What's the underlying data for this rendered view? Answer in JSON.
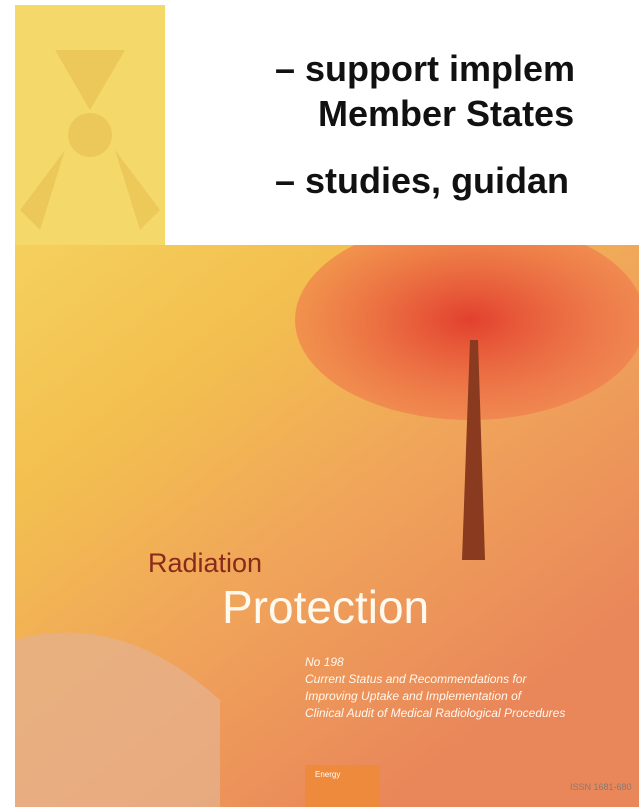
{
  "bullets": [
    "– support implem",
    "Member States",
    "– studies, guidan"
  ],
  "cover": {
    "series": "Radiation",
    "title": "Protection",
    "number": "No 198",
    "subtitle": [
      "Current Status and Recommendations for",
      "Improving Uptake and Implementation of",
      "Clinical Audit of Medical Radiological Procedures"
    ],
    "tag": "Energy",
    "issn": "ISSN 1681-680"
  }
}
